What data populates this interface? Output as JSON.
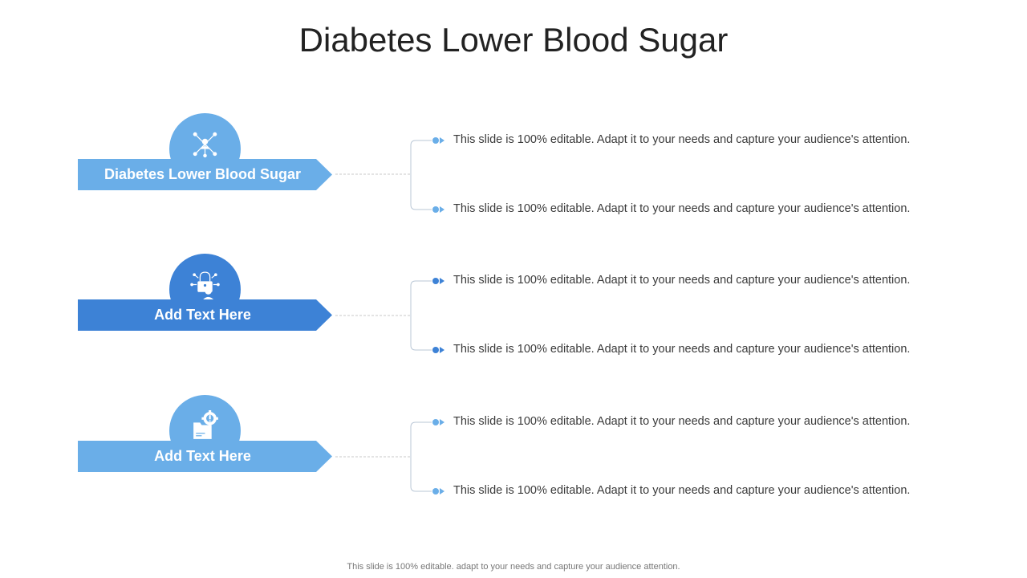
{
  "slide": {
    "title": "Diabetes Lower Blood Sugar",
    "footer": "This slide is 100% editable. adapt to your needs and capture your audience attention."
  },
  "colors": {
    "light_blue": "#6aaee8",
    "dark_blue": "#3d82d6",
    "connector_line": "#b9c7d6",
    "dashed_line": "#c8c8c8"
  },
  "rows": [
    {
      "label": "Diabetes Lower Blood Sugar",
      "icon": "network-people-icon",
      "color": "#6aaee8",
      "bullets": [
        "This slide is 100% editable. Adapt it to your needs and capture your audience's attention.",
        "This slide is 100% editable. Adapt it to your needs and capture your audience's attention."
      ]
    },
    {
      "label": "Add Text Here",
      "icon": "lock-user-icon",
      "color": "#3d82d6",
      "bullets": [
        "This slide is 100% editable. Adapt it to your needs and capture your audience's attention.",
        "This slide is 100% editable. Adapt it to your needs and capture your audience's attention."
      ]
    },
    {
      "label": "Add Text Here",
      "icon": "folder-gear-icon",
      "color": "#6aaee8",
      "bullets": [
        "This slide is 100% editable. Adapt it to your needs and capture your audience's attention.",
        "This slide is 100% editable. Adapt it to your needs and capture your audience's attention."
      ]
    }
  ]
}
